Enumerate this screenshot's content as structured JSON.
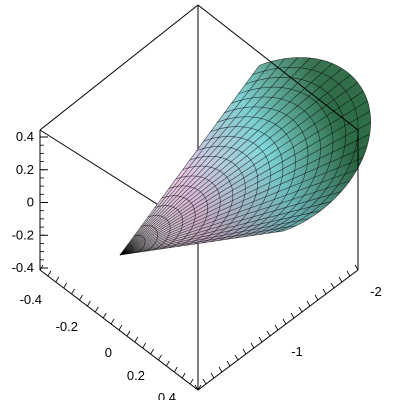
{
  "chart_data": {
    "type": "surface3d",
    "title": "",
    "surface": "cone",
    "apex": [
      0,
      0,
      0
    ],
    "axis_direction": "-x",
    "x_range": [
      -2,
      0
    ],
    "y_range": [
      -0.4,
      0.4
    ],
    "z_range": [
      -0.4,
      0.4
    ],
    "base_radius": 0.4,
    "z_ticks": [
      "0.4",
      "0.2",
      "0",
      "-0.2",
      "-0.4"
    ],
    "y_ticks": [
      "-0.4",
      "-0.2",
      "0",
      "0.2",
      "0.4"
    ],
    "x_ticks": [
      "-2",
      "-1"
    ],
    "mesh": {
      "radial_lines": 24,
      "rings": 20
    },
    "colors": {
      "low": "#ffffff",
      "mid_pink": "#e8c6e4",
      "cyan": "#a6ecf8",
      "green": "#2e6e47",
      "mesh": "#000000",
      "box": "#000000"
    },
    "box": true
  }
}
